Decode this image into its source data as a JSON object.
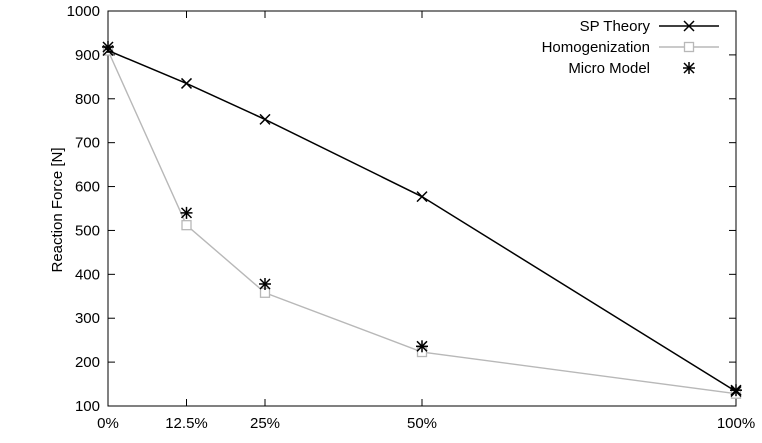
{
  "chart_data": {
    "type": "line",
    "title": "",
    "xlabel": "",
    "ylabel": "Reaction Force [N]",
    "x": [
      0,
      12.5,
      25,
      50,
      100
    ],
    "x_tick_labels": [
      "0%",
      "12.5%",
      "25%",
      "50%",
      "100%"
    ],
    "xlim": [
      0,
      100
    ],
    "ylim": [
      100,
      1000
    ],
    "y_ticks": [
      100,
      200,
      300,
      400,
      500,
      600,
      700,
      800,
      900,
      1000
    ],
    "grid": false,
    "legend_position": "top-right",
    "series": [
      {
        "name": "SP Theory",
        "values": [
          910,
          835,
          753,
          577,
          133
        ],
        "color": "#000000",
        "marker": "x",
        "line": true
      },
      {
        "name": "Homogenization",
        "values": [
          910,
          512,
          358,
          223,
          128
        ],
        "color": "#b8b8b8",
        "marker": "open-square",
        "line": true
      },
      {
        "name": "Micro Model",
        "values": [
          918,
          540,
          378,
          236,
          136
        ],
        "color": "#000000",
        "marker": "asterisk",
        "line": false
      }
    ]
  }
}
